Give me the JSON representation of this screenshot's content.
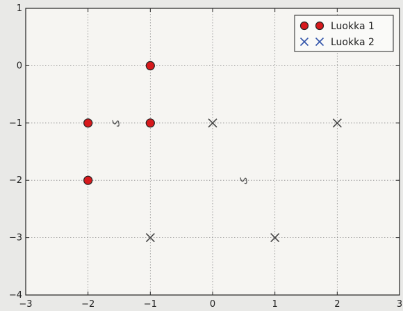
{
  "chart_data": {
    "type": "scatter",
    "xlim": [
      -3,
      3
    ],
    "ylim": [
      -4,
      1
    ],
    "x_ticks": [
      -3,
      -2,
      -1,
      0,
      1,
      2,
      3
    ],
    "y_ticks": [
      1,
      0,
      -1,
      -2,
      -3,
      -4
    ],
    "x_tick_labels": [
      "−3",
      "−2",
      "−1",
      "0",
      "1",
      "2",
      "3"
    ],
    "y_tick_labels": [
      "1",
      "0",
      "−1",
      "−2",
      "−3",
      "−4"
    ],
    "grid": true,
    "legend_position": "top-right",
    "series": [
      {
        "name": "Luokka 1",
        "marker": "circle",
        "color": "#d7191c",
        "points": [
          [
            -1,
            0
          ],
          [
            -2,
            -1
          ],
          [
            -1,
            -1
          ],
          [
            -2,
            -2
          ]
        ]
      },
      {
        "name": "Luokka 2",
        "marker": "x",
        "color": "#3355aa",
        "points": [
          [
            0,
            -1
          ],
          [
            2,
            -1
          ],
          [
            -1,
            -3
          ],
          [
            1,
            -3
          ]
        ]
      }
    ],
    "annotations": [
      {
        "text": "",
        "x": -1.55,
        "y": -1.0
      },
      {
        "text": "",
        "x": 0.5,
        "y": -2.0
      }
    ]
  },
  "colors": {
    "background": "#e9e9e7",
    "plot_area": "#f6f5f2",
    "axis": "#222222",
    "grid": "#888888"
  }
}
